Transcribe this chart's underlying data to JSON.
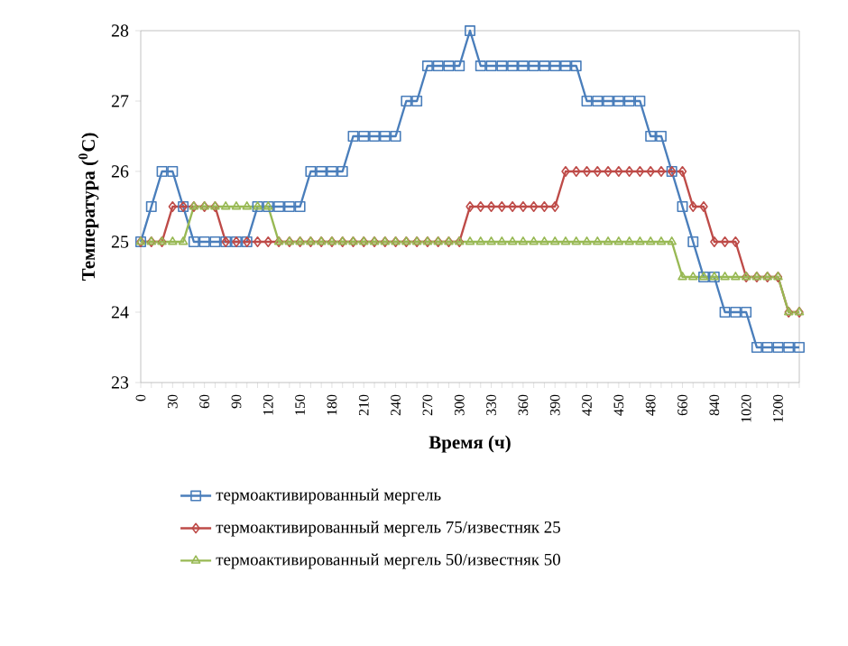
{
  "chart_data": {
    "type": "line",
    "xlabel": "Время (ч)",
    "ylabel": "Температура ($^{0}$C)",
    "categories": [
      "0",
      null,
      null,
      "30",
      null,
      null,
      "60",
      null,
      null,
      "90",
      null,
      null,
      "120",
      null,
      null,
      "150",
      null,
      null,
      "180",
      null,
      null,
      "210",
      null,
      null,
      "240",
      null,
      null,
      "270",
      null,
      null,
      "300",
      null,
      null,
      "330",
      null,
      null,
      "360",
      null,
      null,
      "390",
      null,
      null,
      "420",
      null,
      null,
      "450",
      null,
      null,
      "480",
      null,
      null,
      "660",
      null,
      null,
      "840",
      null,
      null,
      "1020",
      null,
      null,
      "1200",
      null,
      null
    ],
    "ylim": [
      23,
      28
    ],
    "yticks": [
      23,
      24,
      25,
      26,
      27,
      28
    ],
    "legend": "bottom",
    "series": [
      {
        "name": "термоактивированный мергель",
        "color": "#4a7ebb",
        "marker": "square",
        "values": [
          25,
          25.5,
          26,
          26,
          25.5,
          25,
          25,
          25,
          25,
          25,
          25,
          25.5,
          25.5,
          25.5,
          25.5,
          25.5,
          26,
          26,
          26,
          26,
          26.5,
          26.5,
          26.5,
          26.5,
          26.5,
          27,
          27,
          27.5,
          27.5,
          27.5,
          27.5,
          28,
          27.5,
          27.5,
          27.5,
          27.5,
          27.5,
          27.5,
          27.5,
          27.5,
          27.5,
          27.5,
          27,
          27,
          27,
          27,
          27,
          27,
          26.5,
          26.5,
          26,
          25.5,
          25,
          24.5,
          24.5,
          24,
          24,
          24,
          23.5,
          23.5,
          23.5,
          23.5,
          23.5
        ]
      },
      {
        "name": "термоактивированный мергель 75/известняк 25",
        "color": "#be4b48",
        "marker": "diamond",
        "values": [
          25,
          25,
          25,
          25.5,
          25.5,
          25.5,
          25.5,
          25.5,
          25,
          25,
          25,
          25,
          25,
          25,
          25,
          25,
          25,
          25,
          25,
          25,
          25,
          25,
          25,
          25,
          25,
          25,
          25,
          25,
          25,
          25,
          25,
          25.5,
          25.5,
          25.5,
          25.5,
          25.5,
          25.5,
          25.5,
          25.5,
          25.5,
          26,
          26,
          26,
          26,
          26,
          26,
          26,
          26,
          26,
          26,
          26,
          26,
          25.5,
          25.5,
          25,
          25,
          25,
          24.5,
          24.5,
          24.5,
          24.5,
          24,
          24
        ]
      },
      {
        "name": "термоактивированный мергель 50/известняк 50",
        "color": "#98b954",
        "marker": "triangle",
        "values": [
          25,
          25,
          25,
          25,
          25,
          25.5,
          25.5,
          25.5,
          25.5,
          25.5,
          25.5,
          25.5,
          25.5,
          25,
          25,
          25,
          25,
          25,
          25,
          25,
          25,
          25,
          25,
          25,
          25,
          25,
          25,
          25,
          25,
          25,
          25,
          25,
          25,
          25,
          25,
          25,
          25,
          25,
          25,
          25,
          25,
          25,
          25,
          25,
          25,
          25,
          25,
          25,
          25,
          25,
          25,
          24.5,
          24.5,
          24.5,
          24.5,
          24.5,
          24.5,
          24.5,
          24.5,
          24.5,
          24.5,
          24,
          24
        ]
      }
    ]
  }
}
